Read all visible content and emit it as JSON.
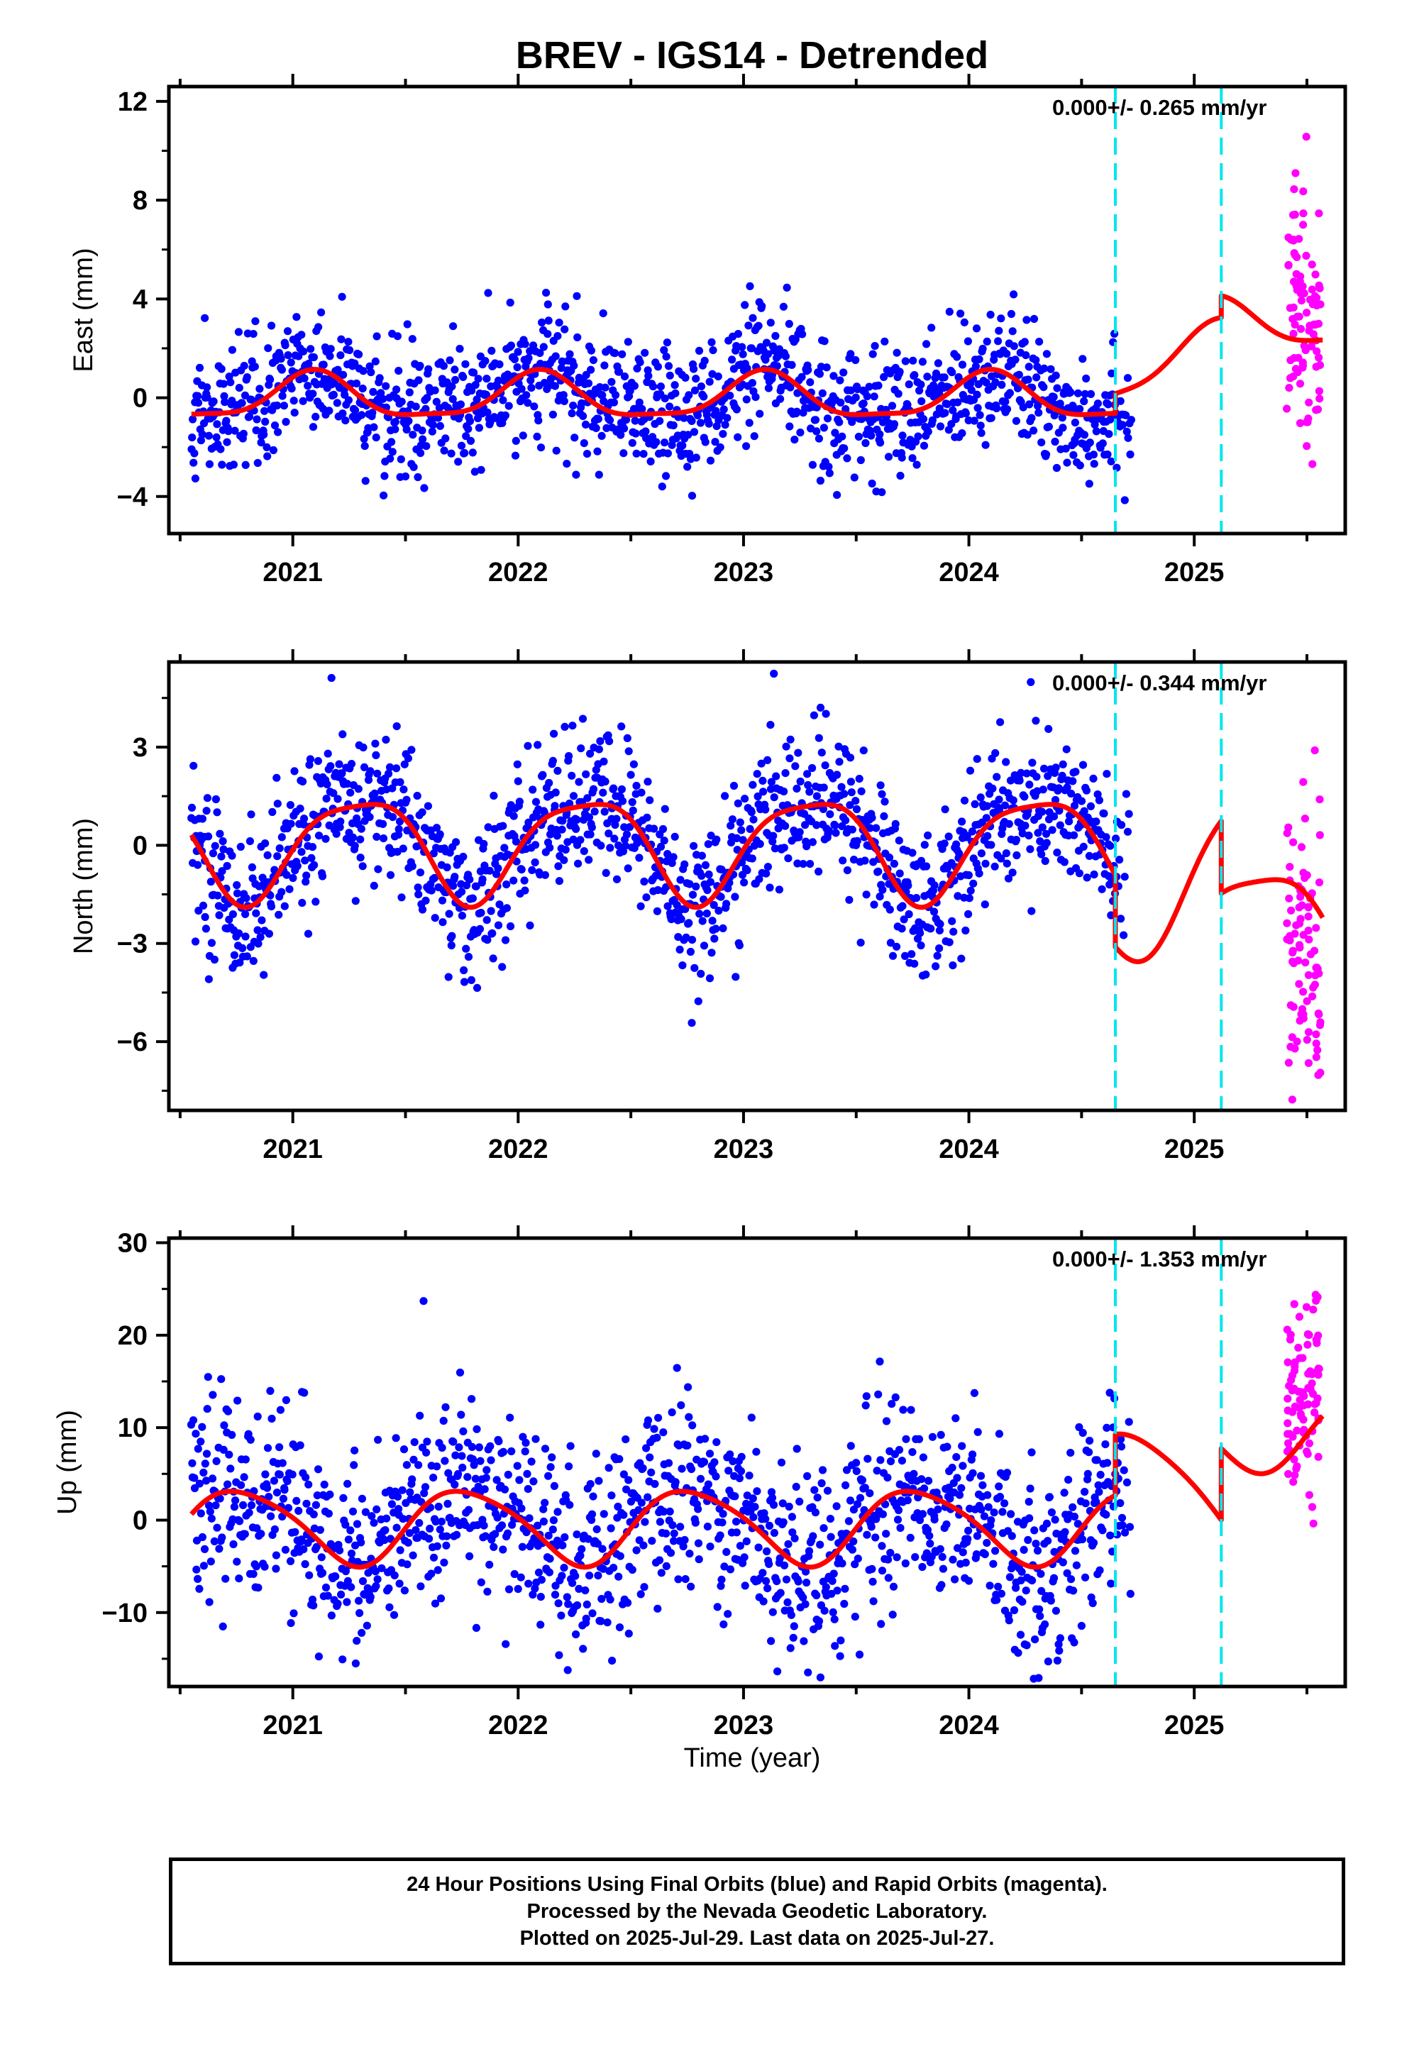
{
  "title": "BREV - IGS14 - Detrended",
  "xlabel": "Time (year)",
  "footer": {
    "line1": "24 Hour Positions Using Final Orbits (blue) and Rapid Orbits (magenta).",
    "line2": "Processed by the Nevada Geodetic Laboratory.",
    "line3": "Plotted on 2025-Jul-29. Last data on 2025-Jul-27."
  },
  "colors": {
    "final_orbits": "#0000ff",
    "rapid_orbits": "#ff00ff",
    "model": "#ff0000",
    "event_lines": "#00e5ee",
    "axes": "#000000"
  },
  "chart_data": [
    {
      "type": "scatter",
      "component": "East",
      "ylabel": "East (mm)",
      "rate_label": "0.000+/- 0.265 mm/yr",
      "xlim": [
        2020.45,
        2025.67
      ],
      "ylim": [
        -5.5,
        12.6
      ],
      "xticks": [
        2021,
        2022,
        2023,
        2024,
        2025
      ],
      "yticks": [
        -4,
        0,
        4,
        8,
        12
      ],
      "ytick_labels": [
        "−4",
        "0",
        "4",
        "8",
        "12"
      ],
      "final_range": [
        2020.55,
        2024.72
      ],
      "rapid_range": [
        2025.41,
        2025.56
      ],
      "event_lines": [
        2024.65,
        2025.12
      ],
      "model": {
        "amp_annual": 0.9,
        "phase_annual": 1.0,
        "amp_semi": 0.25,
        "phase_semi": 0.3,
        "segments": [
          {
            "t0": 2020.55,
            "t1": 2024.65,
            "offset": 0.0
          },
          {
            "t0": 2024.65,
            "t1": 2025.12,
            "offset": 0.8,
            "drift": 2.8
          },
          {
            "t0": 2025.12,
            "t1": 2025.57,
            "offset": 3.0
          }
        ]
      },
      "scatter_sigma": 1.3,
      "rapid_center": 3.2,
      "rapid_sigma": 2.8,
      "rapid_max": 12.7
    },
    {
      "type": "scatter",
      "component": "North",
      "ylabel": "North (mm)",
      "rate_label": "0.000+/- 0.344 mm/yr",
      "xlim": [
        2020.45,
        2025.67
      ],
      "ylim": [
        -8.1,
        5.6
      ],
      "xticks": [
        2021,
        2022,
        2023,
        2024,
        2025
      ],
      "yticks": [
        -6,
        -3,
        0,
        3
      ],
      "ytick_labels": [
        "−6",
        "−3",
        "0",
        "3"
      ],
      "final_range": [
        2020.55,
        2024.72
      ],
      "rapid_range": [
        2025.41,
        2025.56
      ],
      "event_lines": [
        2024.65,
        2025.12
      ],
      "model": {
        "amp_annual": 1.55,
        "phase_annual": -0.3,
        "amp_semi": 0.35,
        "phase_semi": 1.2,
        "segments": [
          {
            "t0": 2020.55,
            "t1": 2024.65,
            "offset": 0.0
          },
          {
            "t0": 2024.65,
            "t1": 2025.12,
            "offset": -2.2,
            "drift": 4.5
          },
          {
            "t0": 2025.12,
            "t1": 2025.57,
            "offset": -2.3
          }
        ]
      },
      "scatter_sigma": 1.15,
      "rapid_center": -3.0,
      "rapid_sigma": 1.9,
      "rapid_max": 2.9
    },
    {
      "type": "scatter",
      "component": "Up",
      "ylabel": "Up (mm)",
      "rate_label": "0.000+/- 1.353 mm/yr",
      "xlim": [
        2020.45,
        2025.67
      ],
      "ylim": [
        -18.0,
        30.5
      ],
      "xticks": [
        2021,
        2022,
        2023,
        2024,
        2025
      ],
      "yticks": [
        -10,
        0,
        10,
        20,
        30
      ],
      "ytick_labels": [
        "−10",
        "0",
        "10",
        "20",
        "30"
      ],
      "final_range": [
        2020.55,
        2024.72
      ],
      "rapid_range": [
        2025.41,
        2025.56
      ],
      "event_lines": [
        2024.65,
        2025.12
      ],
      "model": {
        "amp_annual": 4.0,
        "phase_annual": 3.0,
        "amp_semi": 0.6,
        "phase_semi": 0.5,
        "segments": [
          {
            "t0": 2020.55,
            "t1": 2024.65,
            "offset": -0.6
          },
          {
            "t0": 2024.65,
            "t1": 2025.12,
            "offset": 6.0,
            "drift": -9.0
          },
          {
            "t0": 2025.12,
            "t1": 2025.57,
            "offset": 9.5
          }
        ]
      },
      "scatter_sigma": 5.2,
      "rapid_center": 12.5,
      "rapid_sigma": 5.5,
      "rapid_max": 30.8
    }
  ]
}
